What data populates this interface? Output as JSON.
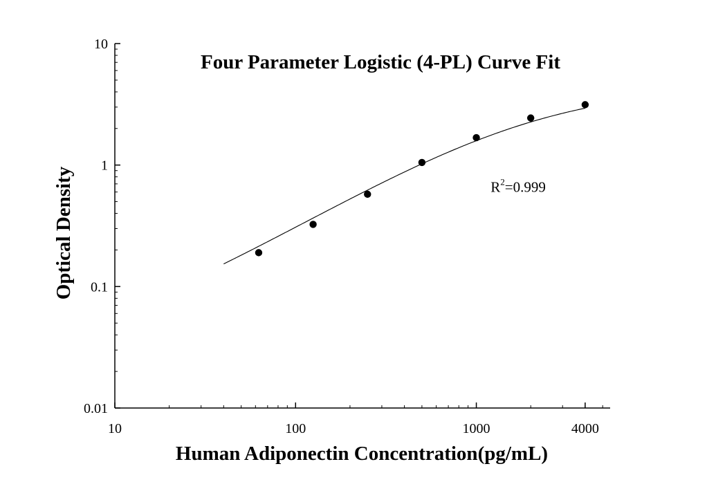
{
  "chart_data": {
    "type": "scatter",
    "title": "Four Parameter Logistic (4-PL) Curve Fit",
    "xlabel": "Human Adiponectin Concentration(pg/mL)",
    "ylabel": "Optical Density",
    "x_scale": "log",
    "y_scale": "log",
    "xlim": [
      10,
      5500
    ],
    "ylim": [
      0.01,
      10
    ],
    "x_ticks": [
      {
        "value": 10,
        "label": "10"
      },
      {
        "value": 100,
        "label": "100"
      },
      {
        "value": 1000,
        "label": "1000"
      },
      {
        "value": 4000,
        "label": "4000"
      }
    ],
    "y_ticks": [
      {
        "value": 0.01,
        "label": "0.01"
      },
      {
        "value": 0.1,
        "label": "0.1"
      },
      {
        "value": 1,
        "label": "1"
      },
      {
        "value": 10,
        "label": "10"
      }
    ],
    "series": [
      {
        "type": "scatter",
        "x": [
          62.5,
          125,
          250,
          500,
          1000,
          2000,
          4000
        ],
        "y": [
          0.19,
          0.325,
          0.575,
          1.05,
          1.68,
          2.44,
          3.14
        ]
      }
    ],
    "fit_curve": {
      "type": "4PL",
      "A": 0.025,
      "B": 0.9,
      "C": 2000,
      "D": 4.5,
      "x_range": [
        40,
        4000
      ]
    },
    "annotation": {
      "prefix": "R",
      "superscript": "2",
      "suffix": "=0.999",
      "x": 1200,
      "y": 0.6
    },
    "grid": false,
    "legend": "none",
    "colors": {
      "marker": "#000000",
      "curve": "#000000",
      "axis": "#000000",
      "text": "#000000"
    }
  }
}
